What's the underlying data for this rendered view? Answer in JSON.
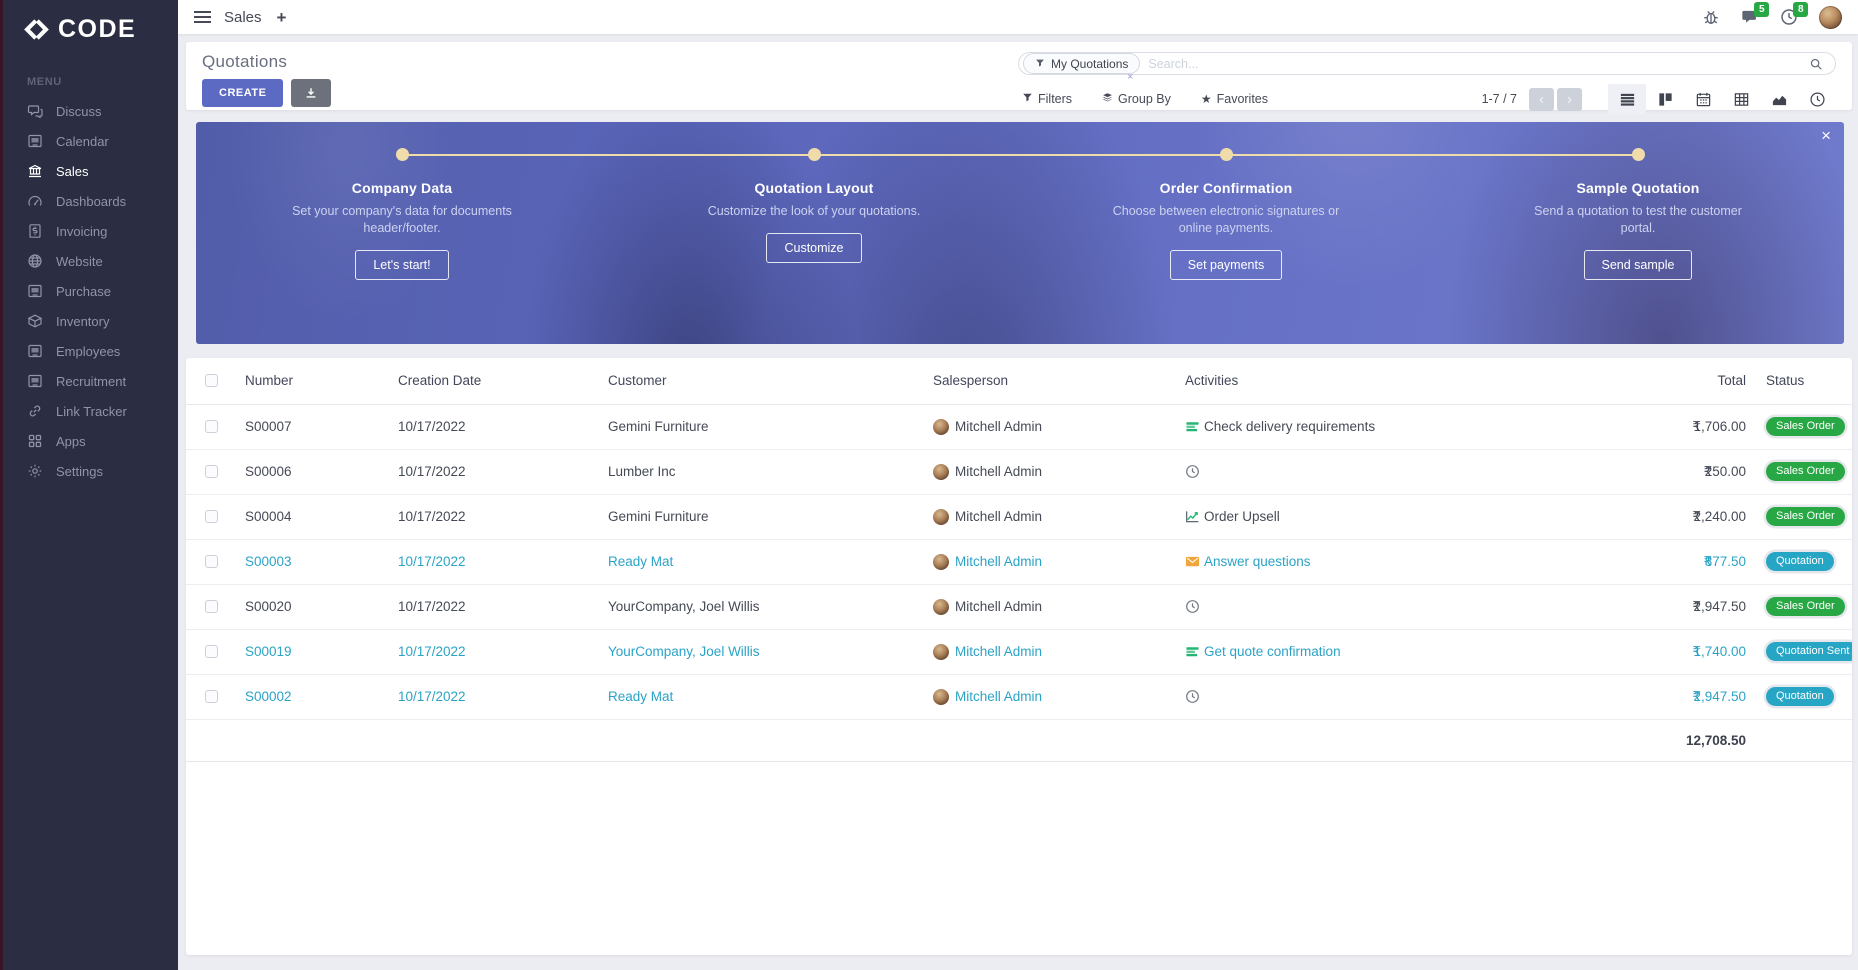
{
  "brand": {
    "name": "CODE"
  },
  "sidebar": {
    "menu_label": "MENU",
    "items": [
      {
        "label": "Discuss",
        "icon": "discuss-icon",
        "active": false
      },
      {
        "label": "Calendar",
        "icon": "calendar-app-icon",
        "active": false
      },
      {
        "label": "Sales",
        "icon": "sales-icon",
        "active": true
      },
      {
        "label": "Dashboards",
        "icon": "dashboards-icon",
        "active": false
      },
      {
        "label": "Invoicing",
        "icon": "invoicing-icon",
        "active": false
      },
      {
        "label": "Website",
        "icon": "website-icon",
        "active": false
      },
      {
        "label": "Purchase",
        "icon": "purchase-icon",
        "active": false
      },
      {
        "label": "Inventory",
        "icon": "inventory-icon",
        "active": false
      },
      {
        "label": "Employees",
        "icon": "employees-icon",
        "active": false
      },
      {
        "label": "Recruitment",
        "icon": "recruitment-icon",
        "active": false
      },
      {
        "label": "Link Tracker",
        "icon": "link-tracker-icon",
        "active": false
      },
      {
        "label": "Apps",
        "icon": "apps-icon",
        "active": false
      },
      {
        "label": "Settings",
        "icon": "settings-icon",
        "active": false
      }
    ]
  },
  "navbar": {
    "app_title": "Sales",
    "add_tab": "+",
    "messages_badge": "5",
    "activities_badge": "8"
  },
  "control_panel": {
    "title": "Quotations",
    "create_label": "CREATE",
    "search": {
      "facet": "My Quotations",
      "placeholder": "Search..."
    },
    "filters_label": "Filters",
    "group_by_label": "Group By",
    "favorites_label": "Favorites",
    "pager": "1-7 / 7",
    "views": [
      {
        "name": "list-view-icon",
        "active": true
      },
      {
        "name": "kanban-view-icon",
        "active": false
      },
      {
        "name": "calendar-view-icon",
        "active": false
      },
      {
        "name": "pivot-view-icon",
        "active": false
      },
      {
        "name": "graph-view-icon",
        "active": false
      },
      {
        "name": "activity-view-icon",
        "active": false
      }
    ]
  },
  "banner": {
    "steps": [
      {
        "title": "Company Data",
        "description": "Set your company's data for documents header/footer.",
        "button": "Let's start!"
      },
      {
        "title": "Quotation Layout",
        "description": "Customize the look of your quotations.",
        "button": "Customize"
      },
      {
        "title": "Order Confirmation",
        "description": "Choose between electronic signatures or online payments.",
        "button": "Set payments"
      },
      {
        "title": "Sample Quotation",
        "description": "Send a quotation to test the customer portal.",
        "button": "Send sample"
      }
    ]
  },
  "table": {
    "columns": [
      "Number",
      "Creation Date",
      "Customer",
      "Salesperson",
      "Activities",
      "Total",
      "Status"
    ],
    "currency": "₹",
    "rows": [
      {
        "number": "S00007",
        "creation_date": "10/17/2022",
        "customer": "Gemini Furniture",
        "salesperson": "Mitchell Admin",
        "activity": "Check delivery requirements",
        "activity_icon": "tasks-activity-icon",
        "total": "1,706.00",
        "status": "Sales Order",
        "status_color": "green",
        "highlight": false
      },
      {
        "number": "S00006",
        "creation_date": "10/17/2022",
        "customer": "Lumber Inc",
        "salesperson": "Mitchell Admin",
        "activity": "",
        "activity_icon": "clock-activity-icon",
        "total": "250.00",
        "status": "Sales Order",
        "status_color": "green",
        "highlight": false
      },
      {
        "number": "S00004",
        "creation_date": "10/17/2022",
        "customer": "Gemini Furniture",
        "salesperson": "Mitchell Admin",
        "activity": "Order Upsell",
        "activity_icon": "chart-activity-icon",
        "total": "2,240.00",
        "status": "Sales Order",
        "status_color": "green",
        "highlight": false
      },
      {
        "number": "S00003",
        "creation_date": "10/17/2022",
        "customer": "Ready Mat",
        "salesperson": "Mitchell Admin",
        "activity": "Answer questions",
        "activity_icon": "email-activity-icon",
        "total": "877.50",
        "status": "Quotation",
        "status_color": "teal",
        "highlight": true
      },
      {
        "number": "S00020",
        "creation_date": "10/17/2022",
        "customer": "YourCompany, Joel Willis",
        "salesperson": "Mitchell Admin",
        "activity": "",
        "activity_icon": "clock-activity-icon",
        "total": "2,947.50",
        "status": "Sales Order",
        "status_color": "green",
        "highlight": false
      },
      {
        "number": "S00019",
        "creation_date": "10/17/2022",
        "customer": "YourCompany, Joel Willis",
        "salesperson": "Mitchell Admin",
        "activity": "Get quote confirmation",
        "activity_icon": "tasks-activity-icon",
        "total": "1,740.00",
        "status": "Quotation Sent",
        "status_color": "teal",
        "highlight": true
      },
      {
        "number": "S00002",
        "creation_date": "10/17/2022",
        "customer": "Ready Mat",
        "salesperson": "Mitchell Admin",
        "activity": "",
        "activity_icon": "clock-activity-icon",
        "total": "2,947.50",
        "status": "Quotation",
        "status_color": "teal",
        "highlight": true
      }
    ],
    "sum_total": "12,708.50"
  },
  "colors": {
    "accent": "#5d6ac3",
    "sidebar_bg": "#2b2e42",
    "status_green": "#28a745",
    "status_teal": "#27a5c4",
    "highlight_text": "#2ba3c6",
    "timeline": "#f0dcab",
    "badge_notification": "#28a745"
  }
}
